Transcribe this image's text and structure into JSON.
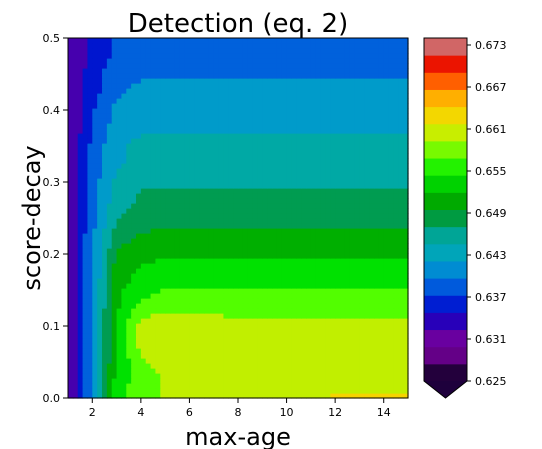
{
  "chart_data": {
    "type": "heatmap",
    "subtype": "filled-contour",
    "title": "Detection (eq. 2)",
    "xlabel": "max-age",
    "ylabel": "score-decay",
    "xlim": [
      1,
      15
    ],
    "ylim": [
      0,
      0.5
    ],
    "x_ticks": [
      2,
      4,
      6,
      8,
      10,
      12,
      14
    ],
    "x_tick_labels": [
      "2",
      "4",
      "6",
      "8",
      "10",
      "12",
      "14"
    ],
    "y_ticks": [
      0.0,
      0.1,
      0.2,
      0.3,
      0.4,
      0.5
    ],
    "y_tick_labels": [
      "0.0",
      "0.1",
      "0.2",
      "0.3",
      "0.4",
      "0.5"
    ],
    "colorbar": {
      "ticks": [
        0.625,
        0.631,
        0.637,
        0.643,
        0.649,
        0.655,
        0.661,
        0.667,
        0.673
      ],
      "tick_labels": [
        "0.625",
        "0.631",
        "0.637",
        "0.643",
        "0.649",
        "0.655",
        "0.661",
        "0.667",
        "0.673"
      ],
      "range": [
        0.625,
        0.674
      ],
      "extend": "min",
      "colormap": "nipy_spectral"
    },
    "rows": [
      {
        "score_decay": 0.0,
        "values": [
          0.631,
          0.641,
          0.654,
          0.658,
          0.659,
          0.659,
          0.659,
          0.66,
          0.66,
          0.661,
          0.661,
          0.662,
          0.662,
          0.662,
          0.662
        ]
      },
      {
        "score_decay": 0.025,
        "values": [
          0.631,
          0.641,
          0.654,
          0.657,
          0.659,
          0.659,
          0.659,
          0.659,
          0.66,
          0.66,
          0.66,
          0.661,
          0.661,
          0.661,
          0.661
        ]
      },
      {
        "score_decay": 0.05,
        "values": [
          0.631,
          0.641,
          0.653,
          0.658,
          0.66,
          0.659,
          0.659,
          0.659,
          0.659,
          0.659,
          0.659,
          0.659,
          0.659,
          0.659,
          0.659
        ]
      },
      {
        "score_decay": 0.075,
        "values": [
          0.631,
          0.641,
          0.653,
          0.66,
          0.661,
          0.66,
          0.66,
          0.659,
          0.659,
          0.659,
          0.659,
          0.659,
          0.659,
          0.659,
          0.659
        ]
      },
      {
        "score_decay": 0.1,
        "values": [
          0.631,
          0.641,
          0.653,
          0.66,
          0.661,
          0.661,
          0.66,
          0.659,
          0.659,
          0.659,
          0.659,
          0.659,
          0.659,
          0.659,
          0.659
        ]
      },
      {
        "score_decay": 0.125,
        "values": [
          0.631,
          0.641,
          0.652,
          0.657,
          0.658,
          0.658,
          0.658,
          0.658,
          0.658,
          0.658,
          0.658,
          0.658,
          0.658,
          0.658,
          0.658
        ]
      },
      {
        "score_decay": 0.15,
        "values": [
          0.631,
          0.64,
          0.652,
          0.654,
          0.656,
          0.656,
          0.656,
          0.656,
          0.656,
          0.656,
          0.656,
          0.656,
          0.656,
          0.656,
          0.656
        ]
      },
      {
        "score_decay": 0.175,
        "values": [
          0.631,
          0.64,
          0.651,
          0.653,
          0.654,
          0.654,
          0.654,
          0.654,
          0.654,
          0.654,
          0.654,
          0.654,
          0.654,
          0.654,
          0.654
        ]
      },
      {
        "score_decay": 0.2,
        "values": [
          0.631,
          0.64,
          0.65,
          0.652,
          0.652,
          0.652,
          0.652,
          0.652,
          0.652,
          0.652,
          0.652,
          0.652,
          0.652,
          0.652,
          0.652
        ]
      },
      {
        "score_decay": 0.225,
        "values": [
          0.631,
          0.64,
          0.648,
          0.65,
          0.65,
          0.65,
          0.65,
          0.65,
          0.65,
          0.65,
          0.65,
          0.65,
          0.65,
          0.65,
          0.65
        ]
      },
      {
        "score_decay": 0.25,
        "values": [
          0.631,
          0.639,
          0.646,
          0.648,
          0.649,
          0.649,
          0.649,
          0.649,
          0.649,
          0.649,
          0.649,
          0.649,
          0.649,
          0.649,
          0.649
        ]
      },
      {
        "score_decay": 0.275,
        "values": [
          0.631,
          0.639,
          0.645,
          0.647,
          0.647,
          0.647,
          0.647,
          0.647,
          0.647,
          0.647,
          0.647,
          0.647,
          0.647,
          0.647,
          0.647
        ]
      },
      {
        "score_decay": 0.3,
        "values": [
          0.631,
          0.639,
          0.644,
          0.646,
          0.646,
          0.646,
          0.646,
          0.646,
          0.646,
          0.646,
          0.646,
          0.646,
          0.646,
          0.646,
          0.646
        ]
      },
      {
        "score_decay": 0.325,
        "values": [
          0.631,
          0.638,
          0.643,
          0.644,
          0.645,
          0.645,
          0.645,
          0.645,
          0.645,
          0.645,
          0.645,
          0.645,
          0.645,
          0.645,
          0.645
        ]
      },
      {
        "score_decay": 0.35,
        "values": [
          0.631,
          0.638,
          0.643,
          0.644,
          0.644,
          0.644,
          0.644,
          0.644,
          0.644,
          0.644,
          0.644,
          0.644,
          0.644,
          0.644,
          0.644
        ]
      },
      {
        "score_decay": 0.375,
        "values": [
          0.631,
          0.637,
          0.642,
          0.643,
          0.643,
          0.643,
          0.643,
          0.643,
          0.643,
          0.643,
          0.643,
          0.643,
          0.643,
          0.643,
          0.643
        ]
      },
      {
        "score_decay": 0.4,
        "values": [
          0.631,
          0.637,
          0.641,
          0.642,
          0.642,
          0.642,
          0.642,
          0.642,
          0.642,
          0.642,
          0.642,
          0.642,
          0.642,
          0.642,
          0.642
        ]
      },
      {
        "score_decay": 0.425,
        "values": [
          0.631,
          0.636,
          0.64,
          0.641,
          0.641,
          0.641,
          0.641,
          0.641,
          0.641,
          0.641,
          0.641,
          0.641,
          0.641,
          0.641,
          0.641
        ]
      },
      {
        "score_decay": 0.45,
        "values": [
          0.631,
          0.636,
          0.639,
          0.64,
          0.64,
          0.64,
          0.64,
          0.64,
          0.64,
          0.64,
          0.64,
          0.64,
          0.64,
          0.64,
          0.64
        ]
      },
      {
        "score_decay": 0.475,
        "values": [
          0.631,
          0.635,
          0.638,
          0.639,
          0.639,
          0.639,
          0.639,
          0.639,
          0.639,
          0.639,
          0.639,
          0.639,
          0.639,
          0.639,
          0.639
        ]
      },
      {
        "score_decay": 0.5,
        "values": [
          0.631,
          0.635,
          0.638,
          0.638,
          0.638,
          0.638,
          0.638,
          0.638,
          0.638,
          0.638,
          0.638,
          0.638,
          0.638,
          0.638,
          0.638
        ]
      }
    ],
    "x_values": [
      1,
      2,
      3,
      4,
      5,
      6,
      7,
      8,
      9,
      10,
      11,
      12,
      13,
      14,
      15
    ]
  }
}
